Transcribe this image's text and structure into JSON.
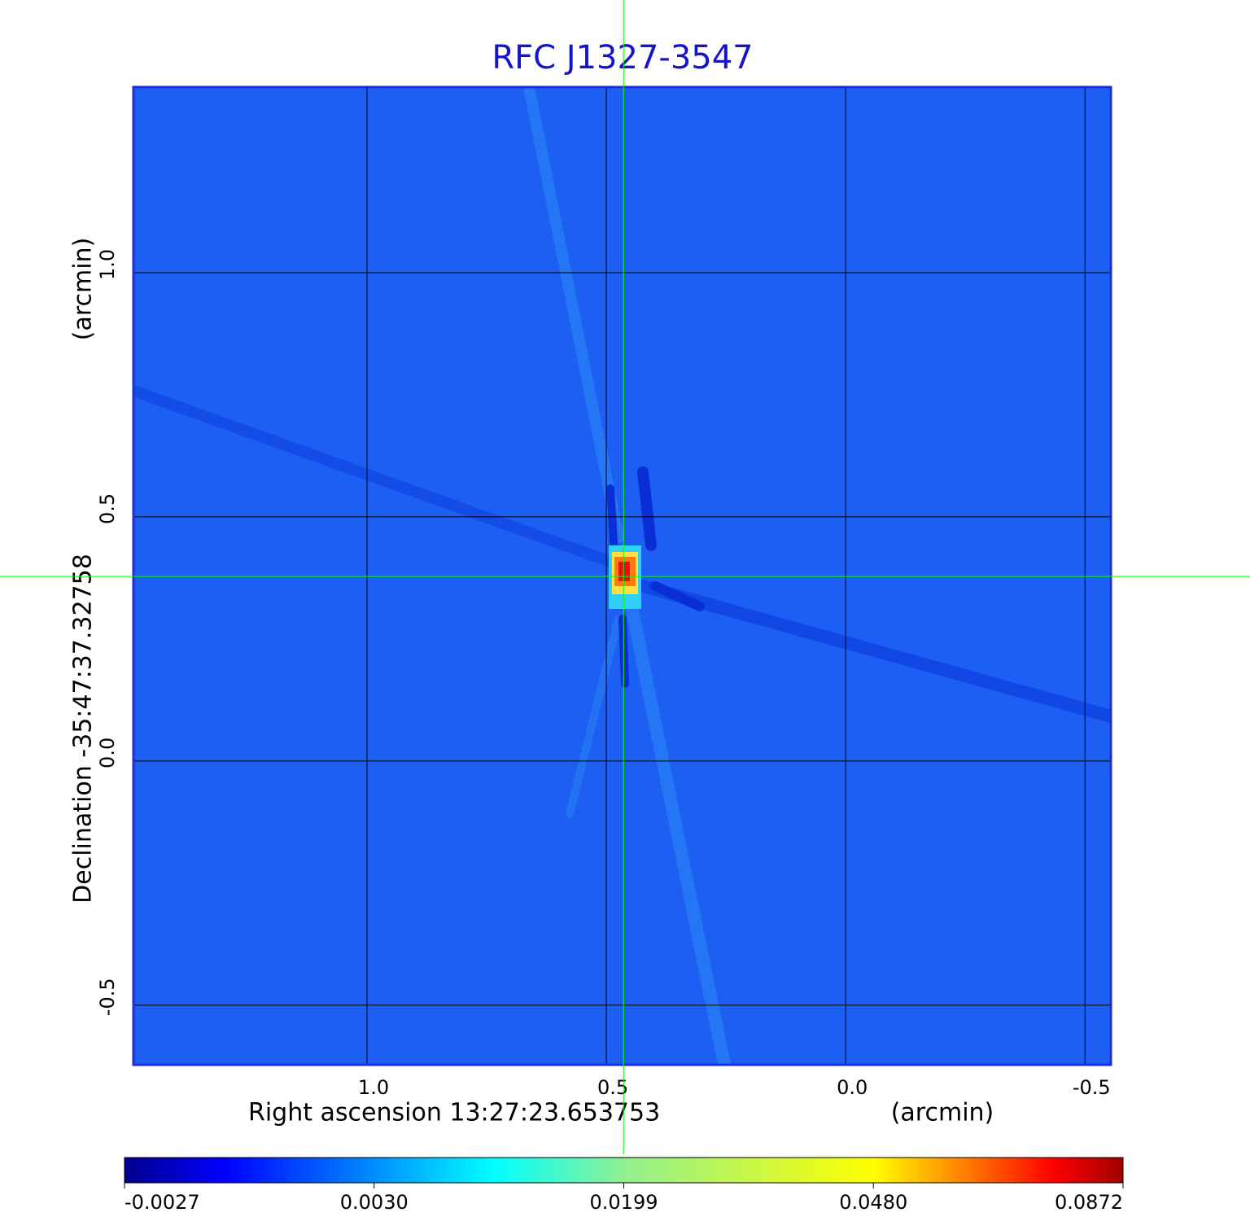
{
  "chart_data": {
    "type": "image",
    "title": "RFC J1327-3547",
    "x_label": "Right ascension  13:27:23.653753",
    "x_unit": "(arcmin)",
    "y_label": "Declination  -35:47:37.32758",
    "y_unit": "(arcmin)",
    "xlim": [
      1.488,
      -0.554
    ],
    "ylim": [
      -0.622,
      1.38
    ],
    "xticks": [
      {
        "value": 1.0,
        "label": "1.0"
      },
      {
        "value": 0.5,
        "label": "0.5"
      },
      {
        "value": 0.0,
        "label": "0.0"
      },
      {
        "value": -0.5,
        "label": "-0.5"
      }
    ],
    "yticks": [
      {
        "value": 1.0,
        "label": "1.0"
      },
      {
        "value": 0.5,
        "label": "0.5"
      },
      {
        "value": 0.0,
        "label": "0.0"
      },
      {
        "value": -0.5,
        "label": "-0.5"
      }
    ],
    "grid": true,
    "marker": {
      "x": 0.464,
      "y": 0.378,
      "color": "#00ff00"
    },
    "colormap": "jet",
    "colorbar_ticks": [
      {
        "value": -0.0027,
        "label": "-0.0027"
      },
      {
        "value": 0.003,
        "label": "0.0030"
      },
      {
        "value": 0.0199,
        "label": "0.0199"
      },
      {
        "value": 0.048,
        "label": "0.0480"
      },
      {
        "value": 0.0872,
        "label": "0.0872"
      }
    ]
  }
}
